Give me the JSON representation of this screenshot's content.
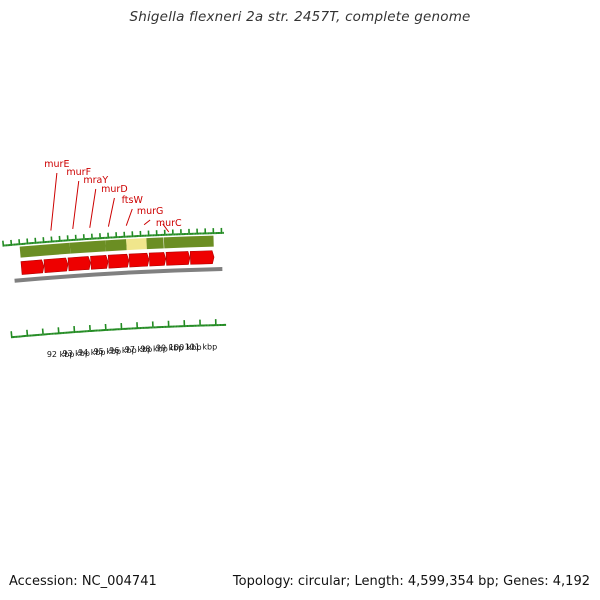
{
  "title": "Shigella flexneri 2a str. 2457T, complete genome",
  "footer": {
    "accession": "Accession: NC_004741",
    "stats": "Topology: circular; Length: 4,599,354 bp; Genes: 4,192"
  },
  "colors": {
    "gene_label": "#cc0000",
    "gene_arrow": "#ee0000",
    "segment_green": "#6b8e23",
    "segment_highlight": "#f0e68c",
    "tick": "#228b22",
    "backbone": "#808080"
  },
  "gene_labels": [
    {
      "name": "murE",
      "kbp": 92.0
    },
    {
      "name": "murF",
      "kbp": 93.35
    },
    {
      "name": "mraY",
      "kbp": 94.4
    },
    {
      "name": "murD",
      "kbp": 95.55
    },
    {
      "name": "ftsW",
      "kbp": 96.65
    },
    {
      "name": "murG",
      "kbp": 97.75
    },
    {
      "name": "murC",
      "kbp": 98.9
    }
  ],
  "kbp_labels": [
    {
      "text": "92 kbp",
      "kbp": 92
    },
    {
      "text": "93 kbp",
      "kbp": 93
    },
    {
      "text": "94 kbp",
      "kbp": 94
    },
    {
      "text": "95 kbp",
      "kbp": 95
    },
    {
      "text": "96 kbp",
      "kbp": 96
    },
    {
      "text": "97 kbp",
      "kbp": 97
    },
    {
      "text": "98 kbp",
      "kbp": 98
    },
    {
      "text": "99 kbp",
      "kbp": 99
    },
    {
      "text": "100 kbp",
      "kbp": 100
    },
    {
      "text": "101 kbp",
      "kbp": 101
    }
  ],
  "green_segments": [
    {
      "start_kbp": 90.0,
      "end_kbp": 93.1,
      "highlight": false
    },
    {
      "start_kbp": 93.1,
      "end_kbp": 95.3,
      "highlight": false
    },
    {
      "start_kbp": 95.3,
      "end_kbp": 96.6,
      "highlight": false
    },
    {
      "start_kbp": 96.6,
      "end_kbp": 97.85,
      "highlight": true
    },
    {
      "start_kbp": 97.85,
      "end_kbp": 98.9,
      "highlight": false
    },
    {
      "start_kbp": 98.93,
      "end_kbp": 102.0,
      "highlight": false
    }
  ],
  "gene_arrows": [
    {
      "start_kbp": 90.0,
      "end_kbp": 91.4
    },
    {
      "start_kbp": 91.43,
      "end_kbp": 92.9
    },
    {
      "start_kbp": 92.93,
      "end_kbp": 94.3
    },
    {
      "start_kbp": 94.33,
      "end_kbp": 95.4
    },
    {
      "start_kbp": 95.43,
      "end_kbp": 96.7
    },
    {
      "start_kbp": 96.73,
      "end_kbp": 97.95
    },
    {
      "start_kbp": 97.98,
      "end_kbp": 99.0
    },
    {
      "start_kbp": 99.03,
      "end_kbp": 100.5
    },
    {
      "start_kbp": 100.53,
      "end_kbp": 102.0
    }
  ]
}
